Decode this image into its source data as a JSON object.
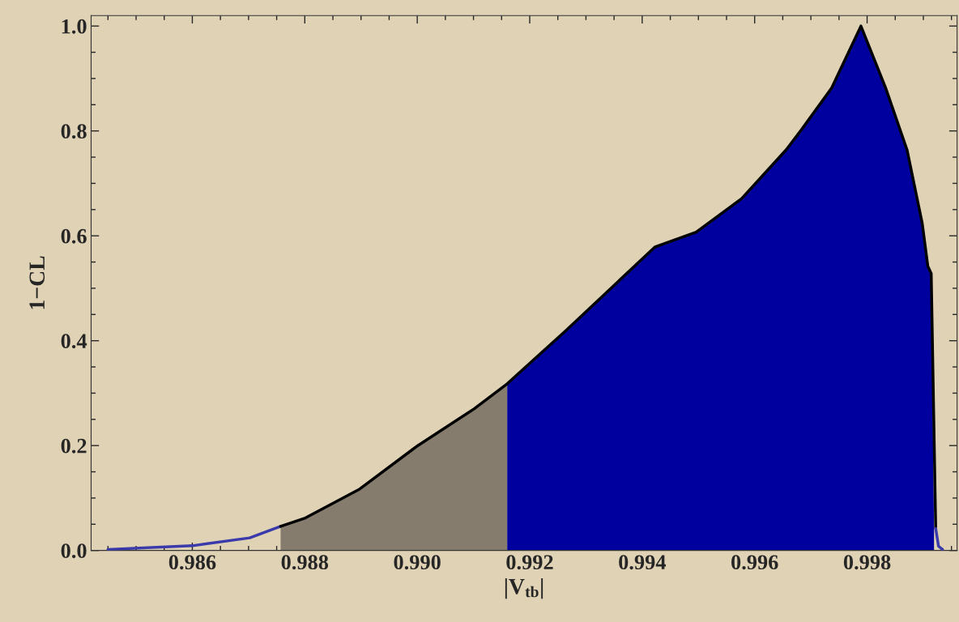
{
  "chart_data": {
    "type": "area",
    "xlabel": "|V$_{tb}$|",
    "ylabel": "1−CL",
    "xlim": [
      0.9842,
      0.9996
    ],
    "ylim": [
      0,
      1.02
    ],
    "xticks": [
      0.986,
      0.988,
      {
        "value": 0.99,
        "label": "0.990"
      },
      0.992,
      0.994,
      0.996,
      0.998
    ],
    "yticks": [
      {
        "value": 0,
        "label": "0.0"
      },
      {
        "value": 0.2,
        "label": "0.2"
      },
      {
        "value": 0.4,
        "label": "0.4"
      },
      {
        "value": 0.6,
        "label": "0.6"
      },
      {
        "value": 0.8,
        "label": "0.8"
      },
      {
        "value": 1,
        "label": "1.0"
      }
    ],
    "grid": false,
    "legend": false,
    "series": [
      {
        "color": "#857c6e",
        "x": [
          0.98757,
          0.98801,
          0.98896,
          0.99001,
          0.99101,
          0.9916
        ],
        "values": [
          0.046,
          0.062,
          0.116,
          0.2,
          0.27,
          0.318
        ]
      },
      {
        "color": "#00009e",
        "x": [
          0.9916,
          0.99265,
          0.99423,
          0.99496,
          0.99577,
          0.99656,
          0.99683,
          0.99737,
          0.99789,
          0.99833,
          0.99871,
          0.99898,
          0.99908,
          0.99914,
          0.99919
        ],
        "values": [
          0.318,
          0.42,
          0.579,
          0.607,
          0.671,
          0.764,
          0.802,
          0.882,
          1.0,
          0.882,
          0.764,
          0.624,
          0.542,
          0.528,
          0.042
        ]
      },
      {
        "type": "line",
        "color": "#3a3aaa",
        "x": [
          0.9845,
          0.986,
          0.98702,
          0.98757
        ],
        "values": [
          0.002,
          0.009,
          0.024,
          0.046
        ]
      },
      {
        "type": "line",
        "color": "#000000",
        "x": [
          0.98757,
          0.98801,
          0.98896,
          0.99001,
          0.99101,
          0.9916,
          0.99265,
          0.99423,
          0.99496,
          0.99577,
          0.99656,
          0.99683,
          0.99737,
          0.99789,
          0.99833,
          0.99871,
          0.99898,
          0.99908,
          0.99914,
          0.99922
        ],
        "values": [
          0.046,
          0.062,
          0.116,
          0.2,
          0.27,
          0.318,
          0.42,
          0.579,
          0.607,
          0.671,
          0.764,
          0.802,
          0.882,
          1.0,
          0.882,
          0.764,
          0.624,
          0.542,
          0.528,
          0.042
        ]
      },
      {
        "type": "line",
        "color": "#3a3aaa",
        "x": [
          0.99922,
          0.99927,
          0.99934
        ],
        "values": [
          0.042,
          0.008,
          0.002
        ]
      }
    ]
  }
}
